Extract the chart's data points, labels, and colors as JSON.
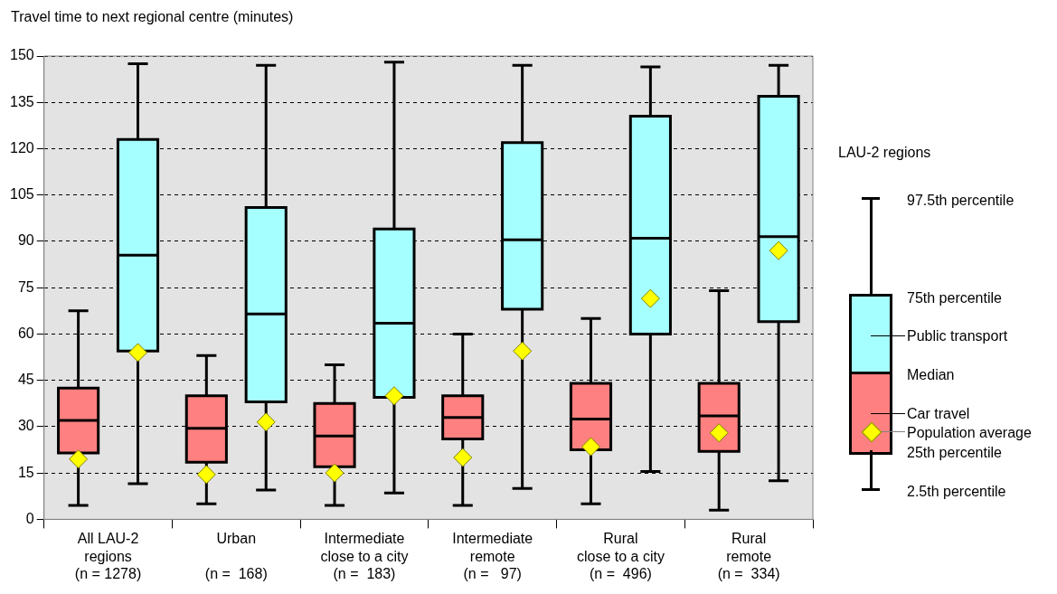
{
  "chart_data": {
    "type": "box",
    "ylabel": "Travel time to next regional centre (minutes)",
    "categories": [
      "All LAU-2\nregions\n(n = 1278)",
      "Urban\n\n(n =  168)",
      "Intermediate\nclose to a city\n(n =  183)",
      "Intermediate\nremote\n(n =   97)",
      "Rural\nclose to a city\n(n =  496)",
      "Rural\nremote\n(n =  334)"
    ],
    "series": [
      {
        "name": "Car travel",
        "color": "#ff8080",
        "boxes": [
          {
            "low": 4.5,
            "q1": 21.5,
            "median": 32,
            "q3": 42.5,
            "high": 67.5,
            "mean": 19.5
          },
          {
            "low": 5,
            "q1": 18.5,
            "median": 29.5,
            "q3": 40,
            "high": 53,
            "mean": 14.5
          },
          {
            "low": 4.5,
            "q1": 17,
            "median": 27,
            "q3": 37.5,
            "high": 50,
            "mean": 15
          },
          {
            "low": 4.5,
            "q1": 26,
            "median": 33,
            "q3": 40,
            "high": 60,
            "mean": 20
          },
          {
            "low": 5,
            "q1": 22.5,
            "median": 32.5,
            "q3": 44,
            "high": 65,
            "mean": 23.5
          },
          {
            "low": 3,
            "q1": 22,
            "median": 33.5,
            "q3": 44,
            "high": 74,
            "mean": 28
          }
        ]
      },
      {
        "name": "Public transport",
        "color": "#a6ffff",
        "boxes": [
          {
            "low": 11.5,
            "q1": 54.5,
            "median": 85.5,
            "q3": 123,
            "high": 147.5,
            "mean": 54
          },
          {
            "low": 9.5,
            "q1": 38,
            "median": 66.5,
            "q3": 101,
            "high": 147,
            "mean": 31.5
          },
          {
            "low": 8.5,
            "q1": 39.5,
            "median": 63.5,
            "q3": 94,
            "high": 148,
            "mean": 40
          },
          {
            "low": 10,
            "q1": 68,
            "median": 90.5,
            "q3": 122,
            "high": 147,
            "mean": 54.5
          },
          {
            "low": 15.5,
            "q1": 60,
            "median": 91,
            "q3": 130.5,
            "high": 146.5,
            "mean": 71.5
          },
          {
            "low": 12.5,
            "q1": 64,
            "median": 91.5,
            "q3": 137,
            "high": 147,
            "mean": 87
          }
        ]
      }
    ],
    "ylim": [
      0,
      150
    ],
    "yticks": [
      0,
      15,
      30,
      45,
      60,
      75,
      90,
      105,
      120,
      135,
      150
    ],
    "grid": "y",
    "legend": "right",
    "legend_title": "LAU-2 regions",
    "annotations": [
      "97.5th percentile",
      "75th percentile",
      "Median",
      "Population average",
      "25th percentile",
      "2.5th percentile"
    ]
  }
}
